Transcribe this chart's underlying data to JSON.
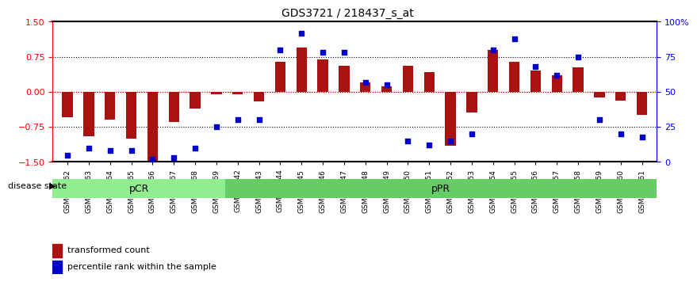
{
  "title": "GDS3721 / 218437_s_at",
  "samples": [
    "GSM559062",
    "GSM559063",
    "GSM559064",
    "GSM559065",
    "GSM559066",
    "GSM559067",
    "GSM559068",
    "GSM559069",
    "GSM559042",
    "GSM559043",
    "GSM559044",
    "GSM559045",
    "GSM559046",
    "GSM559047",
    "GSM559048",
    "GSM559049",
    "GSM559050",
    "GSM559051",
    "GSM559052",
    "GSM559053",
    "GSM559054",
    "GSM559055",
    "GSM559056",
    "GSM559057",
    "GSM559058",
    "GSM559059",
    "GSM559060",
    "GSM559061"
  ],
  "bar_values": [
    -0.55,
    -0.95,
    -0.6,
    -1.0,
    -1.5,
    -0.65,
    -0.35,
    -0.05,
    -0.05,
    -0.2,
    0.65,
    0.95,
    0.7,
    0.55,
    0.2,
    0.12,
    0.55,
    0.42,
    -1.15,
    -0.45,
    0.9,
    0.65,
    0.45,
    0.35,
    0.52,
    -0.12,
    -0.18,
    -0.5
  ],
  "blue_values": [
    5,
    10,
    8,
    8,
    2,
    3,
    10,
    25,
    30,
    30,
    80,
    92,
    78,
    78,
    57,
    55,
    15,
    12,
    15,
    20,
    80,
    88,
    68,
    62,
    75,
    30,
    20,
    18
  ],
  "pCR_indices": [
    0,
    1,
    2,
    3,
    4,
    5,
    6,
    7
  ],
  "pPR_indices": [
    8,
    9,
    10,
    11,
    12,
    13,
    14,
    15,
    16,
    17,
    18,
    19,
    20,
    21,
    22,
    23,
    24,
    25,
    26,
    27
  ],
  "bar_color": "#AA1111",
  "blue_color": "#0000CC",
  "pCR_color": "#90EE90",
  "pPR_color": "#66CC66",
  "pCR_label": "pCR",
  "pPR_label": "pPR",
  "ylim": [
    -1.5,
    1.5
  ],
  "y2lim": [
    0,
    100
  ],
  "yticks": [
    -1.5,
    -0.75,
    0,
    0.75,
    1.5
  ],
  "y2ticks": [
    0,
    25,
    50,
    75,
    100
  ],
  "hlines": [
    -0.75,
    0,
    0.75
  ],
  "legend_bar": "transformed count",
  "legend_blue": "percentile rank within the sample",
  "bar_width": 0.5
}
